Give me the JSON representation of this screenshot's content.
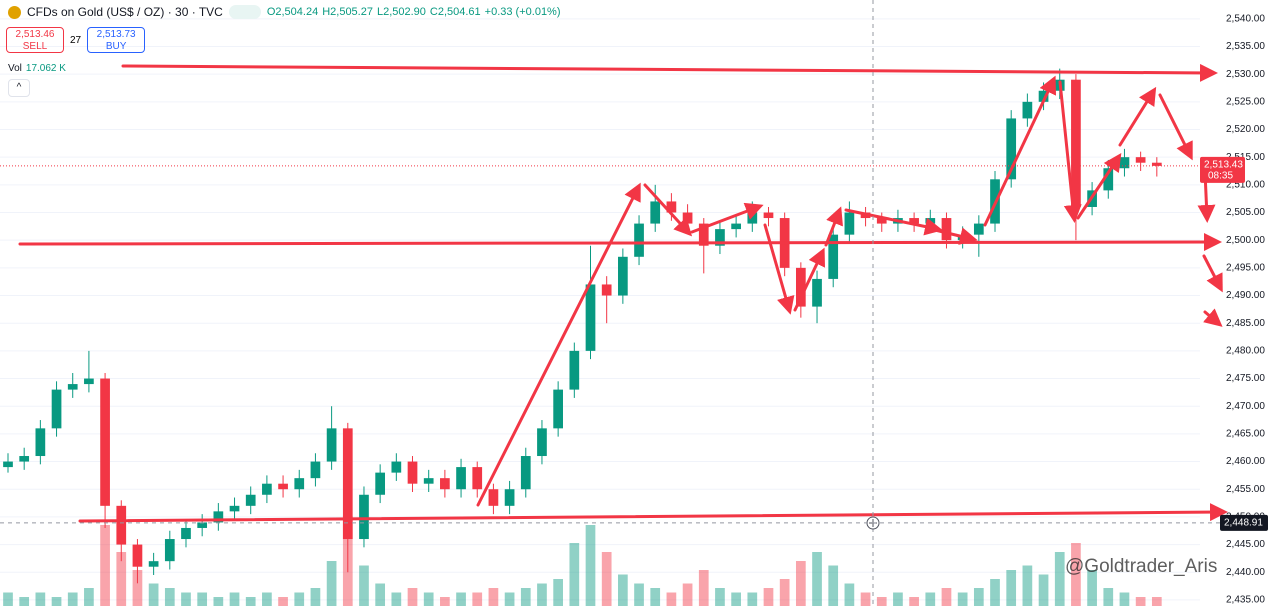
{
  "header": {
    "title": "CFDs on Gold (US$ / OZ) · 30 · TVC",
    "ohlc": [
      "O2,504.24",
      "H2,505.27",
      "L2,502.90",
      "C2,504.61",
      "+0.33 (+0.01%)"
    ]
  },
  "trade": {
    "sell_price": "2,513.46",
    "sell": "SELL",
    "spread": "27",
    "buy_price": "2,513.73",
    "buy": "BUY"
  },
  "volume_legend": {
    "label": "Vol",
    "value": "17.062 K"
  },
  "watermark": "@Goldtrader_Aris",
  "chart_data": {
    "type": "candlestick",
    "ylim": [
      2433.9,
      2543.4
    ],
    "yticks": [
      {
        "value": 2435,
        "label": "2,435.00"
      },
      {
        "value": 2440,
        "label": "2,440.00"
      },
      {
        "value": 2445,
        "label": "2,445.00"
      },
      {
        "value": 2450,
        "label": "2,450.00"
      },
      {
        "value": 2455,
        "label": "2,455.00"
      },
      {
        "value": 2460,
        "label": "2,460.00"
      },
      {
        "value": 2465,
        "label": "2,465.00"
      },
      {
        "value": 2470,
        "label": "2,470.00"
      },
      {
        "value": 2475,
        "label": "2,475.00"
      },
      {
        "value": 2480,
        "label": "2,480.00"
      },
      {
        "value": 2485,
        "label": "2,485.00"
      },
      {
        "value": 2490,
        "label": "2,490.00"
      },
      {
        "value": 2495,
        "label": "2,495.00"
      },
      {
        "value": 2500,
        "label": "2,500.00"
      },
      {
        "value": 2505,
        "label": "2,505.00"
      },
      {
        "value": 2510,
        "label": "2,510.00"
      },
      {
        "value": 2515,
        "label": "2,515.00"
      },
      {
        "value": 2520,
        "label": "2,520.00"
      },
      {
        "value": 2525,
        "label": "2,525.00"
      },
      {
        "value": 2530,
        "label": "2,530.00"
      },
      {
        "value": 2535,
        "label": "2,535.00"
      },
      {
        "value": 2540,
        "label": "2,540.00"
      }
    ],
    "grid": true,
    "up_color": "#089981",
    "down_color": "#f23645",
    "open": [
      2459,
      2460,
      2461,
      2466,
      2473,
      2474,
      2475,
      2452,
      2445,
      2441,
      2442,
      2446,
      2448,
      2449,
      2451,
      2452,
      2454,
      2456,
      2455,
      2457,
      2460,
      2466,
      2446,
      2454,
      2458,
      2460,
      2456,
      2457,
      2455,
      2459,
      2455,
      2452,
      2455,
      2461,
      2466,
      2473,
      2480,
      2492,
      2490,
      2497,
      2503,
      2507,
      2505,
      2503,
      2499,
      2502,
      2503,
      2505,
      2504,
      2495,
      2488,
      2493,
      2501,
      2505,
      2504,
      2503,
      2504,
      2503,
      2504,
      2500,
      2501,
      2503,
      2511,
      2522,
      2525,
      2527,
      2529,
      2506,
      2509,
      2513,
      2515,
      2514
    ],
    "high": [
      2461.5,
      2462.5,
      2467.5,
      2474.5,
      2476,
      2480,
      2476,
      2453,
      2446,
      2443.5,
      2447.5,
      2449.5,
      2450.5,
      2452.5,
      2453.5,
      2455.5,
      2457.5,
      2457.5,
      2458.5,
      2461.5,
      2470,
      2467,
      2455.5,
      2459.5,
      2461.5,
      2461,
      2458.5,
      2458.5,
      2460.5,
      2460,
      2456,
      2456.5,
      2462.5,
      2467.5,
      2474.5,
      2481.5,
      2499,
      2493.5,
      2498.5,
      2504.5,
      2510,
      2508.5,
      2506.5,
      2504,
      2503.5,
      2504.5,
      2507,
      2506,
      2505,
      2496,
      2494.5,
      2502.5,
      2507,
      2506,
      2505,
      2505.5,
      2505,
      2505.5,
      2505,
      2502.5,
      2504.5,
      2512.5,
      2523.5,
      2526.5,
      2528.5,
      2531,
      2530,
      2510.5,
      2514.5,
      2516.5,
      2516,
      2515
    ],
    "low": [
      2458,
      2458.5,
      2459.5,
      2464.5,
      2471.5,
      2472.5,
      2448,
      2442,
      2438,
      2439.5,
      2440.5,
      2444.5,
      2446.5,
      2447.5,
      2449.5,
      2450.5,
      2452.5,
      2453.5,
      2453.5,
      2455.5,
      2458.5,
      2440,
      2444.5,
      2452.5,
      2456.5,
      2454.5,
      2454.5,
      2453.5,
      2453.5,
      2453.5,
      2450.5,
      2450.5,
      2453.5,
      2459.5,
      2464.5,
      2471.5,
      2478.5,
      2485,
      2488.5,
      2495.5,
      2501.5,
      2503.5,
      2501.5,
      2494,
      2497.5,
      2500.5,
      2501.5,
      2502.5,
      2493.5,
      2486,
      2485,
      2491.5,
      2499.5,
      2502.5,
      2501.5,
      2501.5,
      2501.5,
      2501.5,
      2498.5,
      2498.5,
      2497,
      2501.5,
      2509.5,
      2520.5,
      2523.5,
      2525.5,
      2500,
      2504.5,
      2507.5,
      2511.5,
      2512.5,
      2511.5
    ],
    "close": [
      2460,
      2461,
      2466,
      2473,
      2474,
      2475,
      2452,
      2445,
      2441,
      2442,
      2446,
      2448,
      2449,
      2451,
      2452,
      2454,
      2456,
      2455,
      2457,
      2460,
      2466,
      2446,
      2454,
      2458,
      2460,
      2456,
      2457,
      2455,
      2459,
      2455,
      2452,
      2455,
      2461,
      2466,
      2473,
      2480,
      2492,
      2490,
      2497,
      2503,
      2507,
      2505,
      2503,
      2499,
      2502,
      2503,
      2505,
      2504,
      2495,
      2488,
      2493,
      2501,
      2505,
      2504,
      2503,
      2504,
      2503,
      2504,
      2500,
      2501,
      2503,
      2511,
      2522,
      2525,
      2527,
      2529,
      2506,
      2509,
      2513,
      2515,
      2514,
      2513.43
    ],
    "volume": [
      3,
      2,
      3,
      2,
      3,
      4,
      18,
      12,
      8,
      5,
      4,
      3,
      3,
      2,
      3,
      2,
      3,
      2,
      3,
      4,
      10,
      20,
      9,
      5,
      3,
      4,
      3,
      2,
      3,
      3,
      4,
      3,
      4,
      5,
      6,
      14,
      18,
      12,
      7,
      5,
      4,
      3,
      5,
      8,
      4,
      3,
      3,
      4,
      6,
      10,
      12,
      9,
      5,
      3,
      2,
      3,
      2,
      3,
      4,
      3,
      4,
      6,
      8,
      9,
      7,
      12,
      14,
      8,
      4,
      3,
      2,
      2
    ],
    "price_tag": {
      "value": 2513.43,
      "label": "2,513.43",
      "countdown": "08:35"
    },
    "crosshair_tag": {
      "value": 2448.91,
      "label": "2,448.91"
    }
  }
}
